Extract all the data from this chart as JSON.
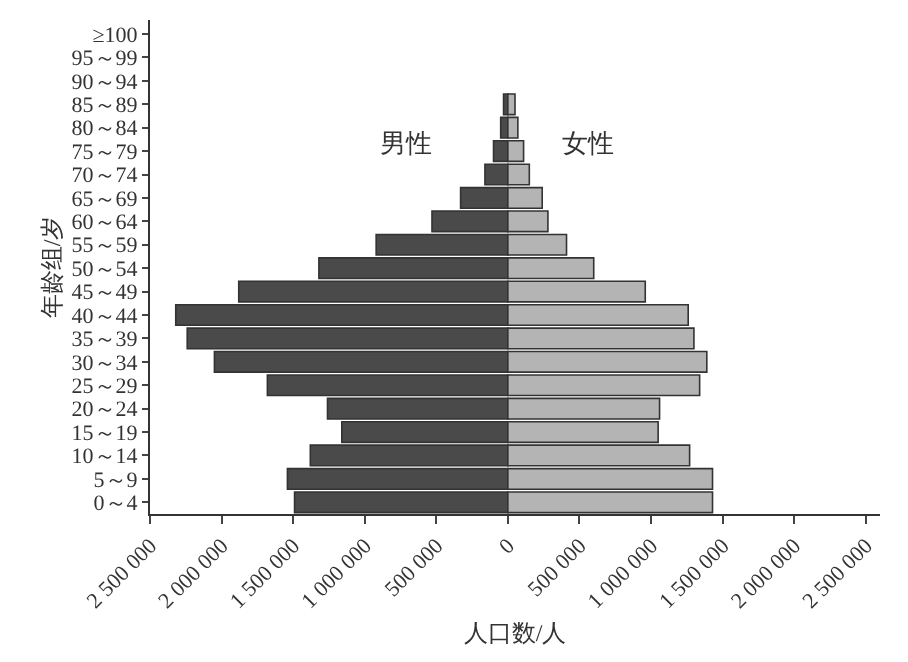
{
  "chart_data": {
    "type": "bar",
    "orientation": "horizontal",
    "stacked": true,
    "xlabel": "人口数/人",
    "ylabel": "年龄组/岁",
    "categories": [
      "≥100",
      "95～99",
      "90～94",
      "85～89",
      "80～84",
      "75～79",
      "70～74",
      "65～69",
      "60～64",
      "55～59",
      "50～54",
      "45～49",
      "40～44",
      "35～39",
      "30～34",
      "25～29",
      "20～24",
      "15～19",
      "10～14",
      "5～9",
      "0～4"
    ],
    "series": [
      {
        "name": "男性",
        "color": "#4a4a4a",
        "values": [
          null,
          null,
          null,
          -30000,
          -50000,
          -100000,
          -160000,
          -330000,
          -530000,
          -920000,
          -1320000,
          -1880000,
          -2320000,
          -2240000,
          -2050000,
          -1680000,
          -1260000,
          -1160000,
          -1380000,
          -1540000,
          -1490000
        ]
      },
      {
        "name": "女性",
        "color": "#b4b4b4",
        "values": [
          null,
          null,
          null,
          50000,
          70000,
          110000,
          150000,
          240000,
          280000,
          410000,
          600000,
          960000,
          1260000,
          1300000,
          1390000,
          1340000,
          1060000,
          1050000,
          1270000,
          1430000,
          1430000
        ]
      }
    ],
    "xlim": [
      -2500000,
      2600000
    ],
    "xticks": [
      {
        "value": -2500000,
        "label": "2 500 000"
      },
      {
        "value": -2000000,
        "label": "2 000 000"
      },
      {
        "value": -1500000,
        "label": "1 500 000"
      },
      {
        "value": -1000000,
        "label": "1 000 000"
      },
      {
        "value": -500000,
        "label": "500 000"
      },
      0,
      {
        "value": 500000,
        "label": "500 000"
      },
      {
        "value": 1000000,
        "label": "1 000 000"
      },
      {
        "value": 1500000,
        "label": "1 500 000"
      },
      {
        "value": 2000000,
        "label": "2 000 000"
      },
      {
        "value": 2500000,
        "label": "2 500 000"
      }
    ],
    "grid": false,
    "legend": false
  }
}
